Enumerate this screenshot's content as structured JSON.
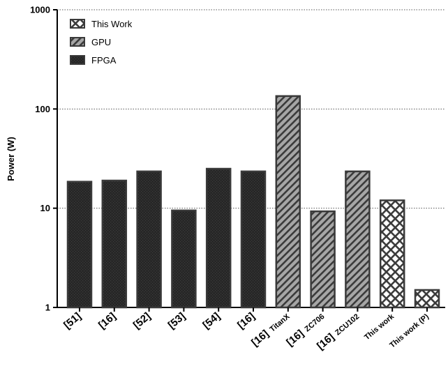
{
  "chart_data": {
    "type": "bar",
    "ylabel": "Power (W)",
    "yscale": "log",
    "ylim": [
      1,
      1000
    ],
    "yticks": [
      "1",
      "10",
      "100",
      "1000"
    ],
    "grid": "horizontal-dotted",
    "legend_position": "top-left",
    "legend": [
      "This Work",
      "GPU",
      "FPGA"
    ],
    "series_colors": {
      "FPGA": "#2b2b2b",
      "GPU": "#8c8c8c",
      "This Work": "#ffffff",
      "outline": "#3a3a3a"
    },
    "bars": [
      {
        "ref": "[51]",
        "sub": "",
        "group": "FPGA",
        "value": 18.5
      },
      {
        "ref": "[16]",
        "sub": "",
        "group": "FPGA",
        "value": 19
      },
      {
        "ref": "[52]",
        "sub": "",
        "group": "FPGA",
        "value": 23.5
      },
      {
        "ref": "[53]",
        "sub": "",
        "group": "FPGA",
        "value": 9.5
      },
      {
        "ref": "[54]",
        "sub": "",
        "group": "FPGA",
        "value": 25
      },
      {
        "ref": "[16]",
        "sub": "",
        "group": "FPGA",
        "value": 23.5
      },
      {
        "ref": "[16]",
        "sub": "TitanX",
        "group": "GPU",
        "value": 135
      },
      {
        "ref": "[16]",
        "sub": "ZC706",
        "group": "GPU",
        "value": 9.3
      },
      {
        "ref": "[16]",
        "sub": "ZCU102",
        "group": "GPU",
        "value": 23.5
      },
      {
        "ref": "",
        "sub": "This work",
        "group": "This Work",
        "value": 12
      },
      {
        "ref": "",
        "sub": "This work (P)",
        "group": "This Work",
        "value": 1.5
      }
    ]
  }
}
